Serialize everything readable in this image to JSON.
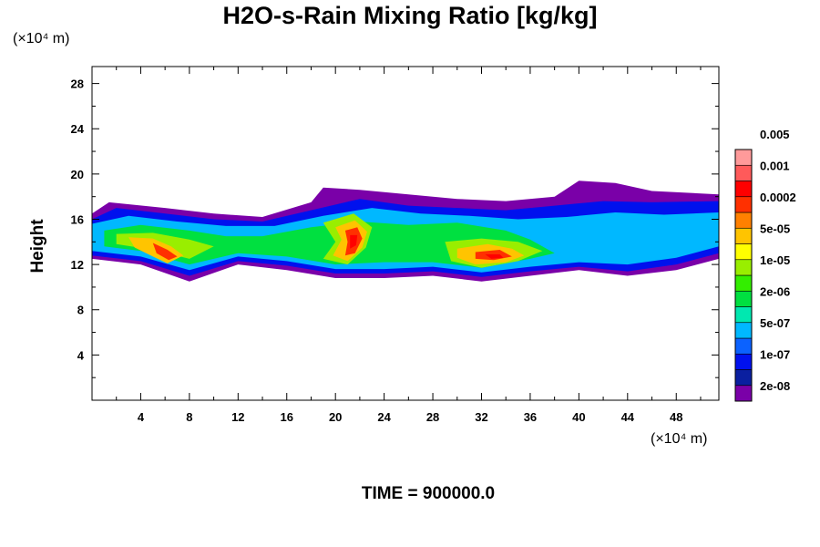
{
  "title": "H2O-s-Rain Mixing Ratio [kg/kg]",
  "y_unit": "(×10⁴ m)",
  "x_unit": "(×10⁴ m)",
  "ylabel": "Height",
  "time_label": "TIME = 900000.0",
  "chart_data": {
    "type": "heatmap",
    "title": "H2O-s-Rain Mixing Ratio [kg/kg]",
    "ylabel": "Height",
    "xlabel": "",
    "xlim": [
      0,
      51.5
    ],
    "ylim": [
      0,
      29.5
    ],
    "x_ticks": [
      4,
      8,
      12,
      16,
      20,
      24,
      28,
      32,
      36,
      40,
      44,
      48
    ],
    "y_ticks": [
      4,
      8,
      12,
      16,
      20,
      24,
      28
    ],
    "colorbar": {
      "levels": [
        "2e-08",
        "1e-07",
        "5e-07",
        "2e-06",
        "1e-05",
        "5e-05",
        "0.0002",
        "0.001",
        "0.005"
      ],
      "colors": [
        "#7a00a8",
        "#0a1fa0",
        "#0011ee",
        "#0b62ff",
        "#00b8ff",
        "#00e8b0",
        "#00e040",
        "#33ee00",
        "#99ee00",
        "#ffff00",
        "#ffc400",
        "#ff8000",
        "#ff3000",
        "#ff0000",
        "#ff5a5a",
        "#ff9a9a"
      ]
    },
    "regions": [
      {
        "level": 0,
        "outline": [
          [
            0,
            16.5
          ],
          [
            1.4,
            17.5
          ],
          [
            6,
            17
          ],
          [
            10,
            16.5
          ],
          [
            14,
            16.2
          ],
          [
            18,
            17.5
          ],
          [
            19,
            18.8
          ],
          [
            22,
            18.6
          ],
          [
            26,
            18.2
          ],
          [
            30,
            17.8
          ],
          [
            34,
            17.6
          ],
          [
            38,
            18
          ],
          [
            40,
            19.4
          ],
          [
            43,
            19.2
          ],
          [
            46,
            18.5
          ],
          [
            51.5,
            18.2
          ],
          [
            51.5,
            12.5
          ],
          [
            48,
            11.5
          ],
          [
            44,
            11
          ],
          [
            40,
            11.5
          ],
          [
            36,
            11
          ],
          [
            32,
            10.5
          ],
          [
            28,
            11
          ],
          [
            24,
            10.8
          ],
          [
            20,
            10.8
          ],
          [
            16,
            11.5
          ],
          [
            12,
            12
          ],
          [
            8,
            10.5
          ],
          [
            4,
            12
          ],
          [
            0,
            12.5
          ]
        ]
      },
      {
        "level": 2,
        "outline": [
          [
            0,
            16
          ],
          [
            2,
            17
          ],
          [
            6,
            16.5
          ],
          [
            10,
            16
          ],
          [
            14,
            15.8
          ],
          [
            18,
            16.8
          ],
          [
            22,
            17.8
          ],
          [
            26,
            17.2
          ],
          [
            30,
            17
          ],
          [
            34,
            16.8
          ],
          [
            38,
            17.2
          ],
          [
            42,
            17.6
          ],
          [
            46,
            17.5
          ],
          [
            51.5,
            17.6
          ],
          [
            51.5,
            13
          ],
          [
            48,
            12
          ],
          [
            44,
            11.4
          ],
          [
            40,
            11.8
          ],
          [
            36,
            11.4
          ],
          [
            32,
            10.9
          ],
          [
            28,
            11.4
          ],
          [
            24,
            11.2
          ],
          [
            20,
            11.2
          ],
          [
            16,
            11.9
          ],
          [
            12,
            12.3
          ],
          [
            8,
            11
          ],
          [
            4,
            12.3
          ],
          [
            0,
            12.8
          ]
        ]
      },
      {
        "level": 4,
        "outline": [
          [
            0,
            15.6
          ],
          [
            3,
            16.3
          ],
          [
            7,
            15.8
          ],
          [
            11,
            15.4
          ],
          [
            15,
            15.4
          ],
          [
            19,
            16.3
          ],
          [
            23,
            17
          ],
          [
            27,
            16.5
          ],
          [
            31,
            16.3
          ],
          [
            35,
            16
          ],
          [
            39,
            16.2
          ],
          [
            43,
            16.6
          ],
          [
            47,
            16.4
          ],
          [
            51.5,
            16.6
          ],
          [
            51.5,
            13.6
          ],
          [
            48,
            12.6
          ],
          [
            44,
            12
          ],
          [
            40,
            12.2
          ],
          [
            36,
            11.8
          ],
          [
            32,
            11.3
          ],
          [
            28,
            11.8
          ],
          [
            24,
            11.6
          ],
          [
            20,
            11.6
          ],
          [
            16,
            12.3
          ],
          [
            12,
            12.7
          ],
          [
            8,
            11.5
          ],
          [
            4,
            12.7
          ],
          [
            0,
            13.2
          ]
        ]
      },
      {
        "level": 6,
        "outline": [
          [
            1,
            15
          ],
          [
            4,
            15.5
          ],
          [
            8,
            15
          ],
          [
            11,
            14.5
          ],
          [
            14,
            14.5
          ],
          [
            18,
            15.3
          ],
          [
            22,
            15.8
          ],
          [
            26,
            15.5
          ],
          [
            30,
            15.7
          ],
          [
            34,
            15
          ],
          [
            36,
            14.2
          ],
          [
            38,
            13
          ],
          [
            36,
            12.5
          ],
          [
            32,
            11.7
          ],
          [
            28,
            12.2
          ],
          [
            24,
            12.2
          ],
          [
            20,
            12
          ],
          [
            16,
            12.7
          ],
          [
            12,
            13
          ],
          [
            8,
            12
          ],
          [
            4,
            13.2
          ],
          [
            1,
            13.6
          ]
        ]
      },
      {
        "level": 8,
        "outline": [
          [
            2,
            14.7
          ],
          [
            5,
            14.8
          ],
          [
            8,
            14.2
          ],
          [
            10,
            13.6
          ],
          [
            8,
            12.5
          ],
          [
            5,
            13.3
          ],
          [
            2,
            13.8
          ]
        ]
      },
      {
        "level": 8,
        "outline": [
          [
            19,
            15.7
          ],
          [
            21.5,
            16.5
          ],
          [
            23,
            15.3
          ],
          [
            22.5,
            13.5
          ],
          [
            21,
            12
          ],
          [
            19,
            12.5
          ],
          [
            20,
            14
          ]
        ]
      },
      {
        "level": 8,
        "outline": [
          [
            29,
            14
          ],
          [
            32,
            14.3
          ],
          [
            35,
            14
          ],
          [
            37,
            13.2
          ],
          [
            35,
            12.3
          ],
          [
            32,
            11.7
          ],
          [
            29.5,
            12.3
          ]
        ]
      },
      {
        "level": 10,
        "outline": [
          [
            3,
            14.4
          ],
          [
            5,
            14.3
          ],
          [
            6.5,
            13.6
          ],
          [
            7.5,
            12.8
          ],
          [
            6.2,
            12.1
          ],
          [
            5,
            12.7
          ],
          [
            3.5,
            13.5
          ]
        ]
      },
      {
        "level": 10,
        "outline": [
          [
            20,
            15.3
          ],
          [
            21.6,
            15.9
          ],
          [
            22.6,
            14.9
          ],
          [
            22.2,
            13.5
          ],
          [
            21,
            12.3
          ],
          [
            19.8,
            12.8
          ],
          [
            20.5,
            14.2
          ]
        ]
      },
      {
        "level": 10,
        "outline": [
          [
            30,
            13.4
          ],
          [
            32.5,
            13.8
          ],
          [
            34.5,
            13.4
          ],
          [
            35.5,
            12.8
          ],
          [
            34,
            12.2
          ],
          [
            31.5,
            12
          ],
          [
            30,
            12.6
          ]
        ]
      },
      {
        "level": 12,
        "outline": [
          [
            5,
            13.9
          ],
          [
            6.2,
            13.3
          ],
          [
            7,
            12.7
          ],
          [
            6.3,
            12.4
          ],
          [
            5.3,
            13
          ]
        ]
      },
      {
        "level": 12,
        "outline": [
          [
            20.8,
            15
          ],
          [
            21.8,
            15.3
          ],
          [
            22.2,
            14.3
          ],
          [
            21.6,
            13
          ],
          [
            20.8,
            12.8
          ],
          [
            21,
            14
          ]
        ]
      },
      {
        "level": 12,
        "outline": [
          [
            31.5,
            13.1
          ],
          [
            33.5,
            13.3
          ],
          [
            34.5,
            12.7
          ],
          [
            33,
            12.4
          ],
          [
            31.5,
            12.5
          ]
        ]
      },
      {
        "level": 13,
        "outline": [
          [
            21.2,
            14.6
          ],
          [
            21.8,
            14.6
          ],
          [
            21.7,
            13.7
          ],
          [
            21.2,
            13.4
          ]
        ]
      },
      {
        "level": 13,
        "outline": [
          [
            32.3,
            12.9
          ],
          [
            33.5,
            12.9
          ],
          [
            33.8,
            12.6
          ],
          [
            32.8,
            12.5
          ]
        ]
      }
    ]
  }
}
